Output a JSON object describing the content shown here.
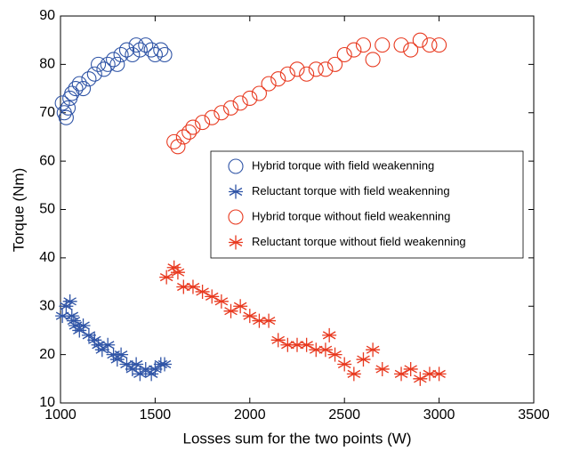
{
  "chart_data": {
    "type": "scatter",
    "xlabel": "Losses sum for the two points (W)",
    "ylabel": "Torque (Nm)",
    "xlim": [
      1000,
      3500
    ],
    "xticks": [
      1000,
      1500,
      2000,
      2500,
      3000,
      3500
    ],
    "ylim": [
      10,
      90
    ],
    "yticks": [
      10,
      20,
      30,
      40,
      50,
      60,
      70,
      80,
      90
    ],
    "legend": "upper right",
    "series": [
      {
        "name": "Hybrid torque with field weakenning",
        "color": "#2f54a6",
        "marker": "circle",
        "x": [
          1010,
          1020,
          1030,
          1040,
          1050,
          1060,
          1080,
          1100,
          1120,
          1150,
          1180,
          1200,
          1230,
          1250,
          1280,
          1300,
          1320,
          1350,
          1380,
          1400,
          1420,
          1450,
          1480,
          1500,
          1530,
          1550
        ],
        "values": [
          72,
          70,
          69,
          71,
          73,
          74,
          75,
          76,
          75,
          77,
          78,
          80,
          79,
          80,
          81,
          80,
          82,
          83,
          82,
          84,
          83,
          84,
          83,
          82,
          83,
          82
        ]
      },
      {
        "name": "Reluctant torque with field weakenning",
        "color": "#2f54a6",
        "marker": "star",
        "x": [
          1010,
          1030,
          1050,
          1060,
          1070,
          1080,
          1100,
          1120,
          1150,
          1180,
          1200,
          1220,
          1250,
          1280,
          1300,
          1320,
          1350,
          1380,
          1400,
          1420,
          1450,
          1480,
          1500,
          1530,
          1550
        ],
        "values": [
          28,
          30,
          31,
          28,
          27,
          26,
          25,
          26,
          24,
          23,
          22,
          21,
          22,
          20,
          19,
          20,
          18,
          17,
          18,
          16,
          17,
          16,
          17,
          18,
          18
        ]
      },
      {
        "name": "Hybrid torque without field weakenning",
        "color": "#e8391f",
        "marker": "circle",
        "x": [
          1600,
          1620,
          1650,
          1680,
          1700,
          1750,
          1800,
          1850,
          1900,
          1950,
          2000,
          2050,
          2100,
          2150,
          2200,
          2250,
          2300,
          2350,
          2400,
          2450,
          2500,
          2550,
          2600,
          2650,
          2700,
          2800,
          2850,
          2900,
          2950,
          3000
        ],
        "values": [
          64,
          63,
          65,
          66,
          67,
          68,
          69,
          70,
          71,
          72,
          73,
          74,
          76,
          77,
          78,
          79,
          78,
          79,
          79,
          80,
          82,
          83,
          84,
          81,
          84,
          84,
          83,
          85,
          84,
          84
        ]
      },
      {
        "name": "Reluctant torque without field weakenning",
        "color": "#e8391f",
        "marker": "star",
        "x": [
          1560,
          1600,
          1620,
          1650,
          1700,
          1750,
          1800,
          1850,
          1900,
          1950,
          2000,
          2050,
          2100,
          2150,
          2200,
          2250,
          2300,
          2350,
          2400,
          2420,
          2450,
          2500,
          2550,
          2600,
          2650,
          2700,
          2800,
          2850,
          2900,
          2950,
          3000
        ],
        "values": [
          36,
          38,
          37,
          34,
          34,
          33,
          32,
          31,
          29,
          30,
          28,
          27,
          27,
          23,
          22,
          22,
          22,
          21,
          21,
          24,
          20,
          18,
          16,
          19,
          21,
          17,
          16,
          17,
          15,
          16,
          16
        ]
      }
    ]
  }
}
